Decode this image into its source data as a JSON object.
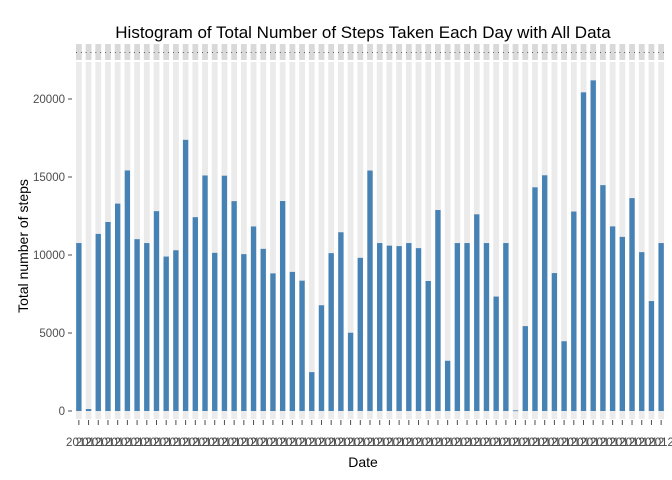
{
  "chart_data": {
    "type": "bar",
    "title": "Histogram of Total Number of Steps Taken Each Day with All Data",
    "xlabel": "Date",
    "ylabel": "Total number of steps",
    "ylim": [
      0,
      22500
    ],
    "yticks": [
      0,
      5000,
      10000,
      15000,
      20000
    ],
    "grid": false,
    "legend": "none",
    "bar_color": "#4682b4",
    "panel_color": "#ebebeb",
    "strip_color": "#d9d9d9",
    "category_labels": "2012-10-01 through 2012-11-30, overlapping and illegible",
    "categories": [
      "2012-10-01",
      "2012-10-02",
      "2012-10-03",
      "2012-10-04",
      "2012-10-05",
      "2012-10-06",
      "2012-10-07",
      "2012-10-08",
      "2012-10-09",
      "2012-10-10",
      "2012-10-11",
      "2012-10-12",
      "2012-10-13",
      "2012-10-14",
      "2012-10-15",
      "2012-10-16",
      "2012-10-17",
      "2012-10-18",
      "2012-10-19",
      "2012-10-20",
      "2012-10-21",
      "2012-10-22",
      "2012-10-23",
      "2012-10-24",
      "2012-10-25",
      "2012-10-26",
      "2012-10-27",
      "2012-10-28",
      "2012-10-29",
      "2012-10-30",
      "2012-10-31",
      "2012-11-01",
      "2012-11-02",
      "2012-11-03",
      "2012-11-04",
      "2012-11-05",
      "2012-11-06",
      "2012-11-07",
      "2012-11-08",
      "2012-11-09",
      "2012-11-10",
      "2012-11-11",
      "2012-11-12",
      "2012-11-13",
      "2012-11-14",
      "2012-11-15",
      "2012-11-16",
      "2012-11-17",
      "2012-11-18",
      "2012-11-19",
      "2012-11-20",
      "2012-11-21",
      "2012-11-22",
      "2012-11-23",
      "2012-11-24",
      "2012-11-25",
      "2012-11-26",
      "2012-11-27",
      "2012-11-28",
      "2012-11-29",
      "2012-11-30"
    ],
    "values": [
      10766,
      126,
      11352,
      12116,
      13294,
      15420,
      11015,
      10766,
      12811,
      9900,
      10304,
      17382,
      12426,
      15098,
      10139,
      15084,
      13452,
      10056,
      11829,
      10395,
      8821,
      13460,
      8918,
      8355,
      2492,
      6778,
      10119,
      11458,
      5018,
      9819,
      15414,
      10766,
      10600,
      10571,
      10766,
      10439,
      8334,
      12883,
      3219,
      10766,
      10766,
      12608,
      10765,
      7336,
      10766,
      41,
      5441,
      14339,
      15110,
      8841,
      4472,
      12787,
      20427,
      21194,
      14478,
      11834,
      11162,
      13646,
      10183,
      7047,
      10766
    ]
  }
}
